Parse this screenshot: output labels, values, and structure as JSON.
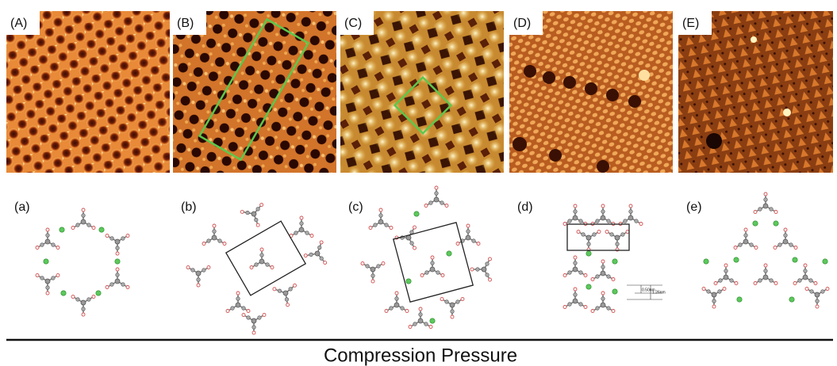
{
  "images": [
    {
      "label": "(A)"
    },
    {
      "label": "(B)"
    },
    {
      "label": "(C)"
    },
    {
      "label": "(D)"
    },
    {
      "label": "(E)"
    }
  ],
  "models": [
    {
      "label": "(a)"
    },
    {
      "label": "(b)"
    },
    {
      "label": "(c)"
    },
    {
      "label": "(d)"
    },
    {
      "label": "(e)"
    }
  ],
  "model_d_annotations": {
    "small_spacing": "0.50nm",
    "large_spacing": "1.26nm"
  },
  "axis_caption": "Compression Pressure"
}
